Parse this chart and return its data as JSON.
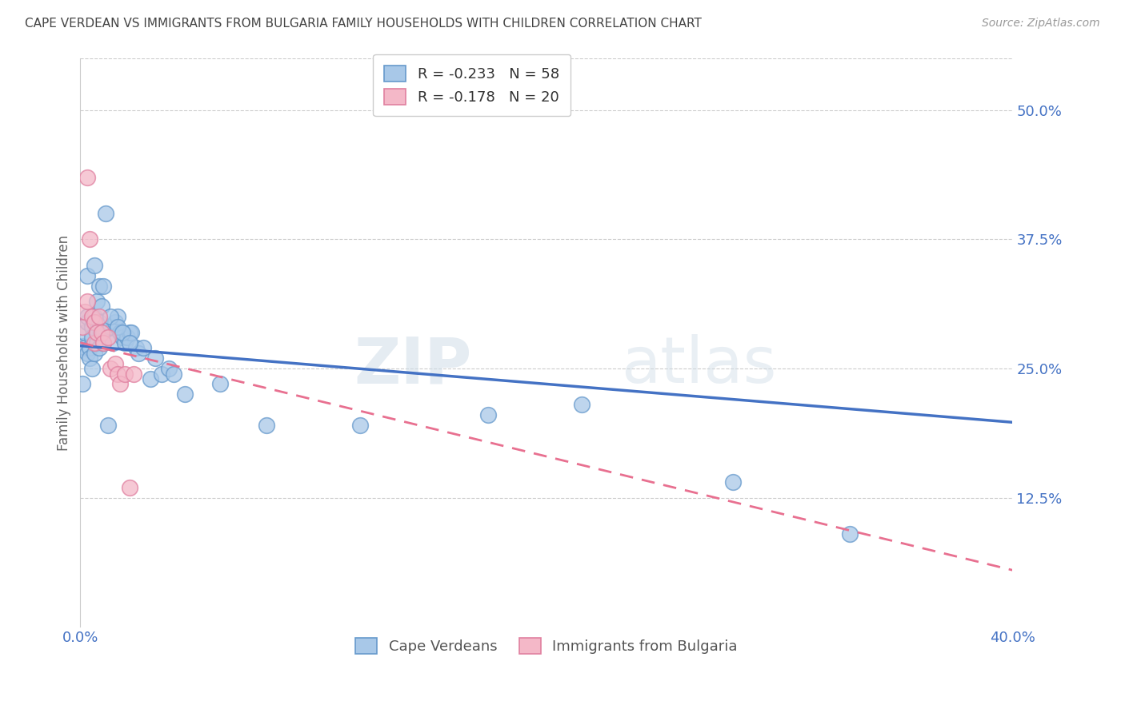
{
  "title": "CAPE VERDEAN VS IMMIGRANTS FROM BULGARIA FAMILY HOUSEHOLDS WITH CHILDREN CORRELATION CHART",
  "source": "Source: ZipAtlas.com",
  "ylabel": "Family Households with Children",
  "xlim": [
    0.0,
    0.4
  ],
  "ylim": [
    0.0,
    0.55
  ],
  "yticks": [
    0.125,
    0.25,
    0.375,
    0.5
  ],
  "ytick_labels": [
    "12.5%",
    "25.0%",
    "37.5%",
    "50.0%"
  ],
  "grid_color": "#cccccc",
  "watermark": "ZIPatlas",
  "series": [
    {
      "name": "Cape Verdeans",
      "R": -0.233,
      "N": 58,
      "color": "#a8c8e8",
      "edge_color": "#6699cc",
      "line_color": "#4472c4",
      "line_start_y": 0.272,
      "line_end_y": 0.198
    },
    {
      "name": "Immigrants from Bulgaria",
      "R": -0.178,
      "N": 20,
      "color": "#f4b8c8",
      "edge_color": "#e080a0",
      "line_color": "#e87090",
      "line_start_y": 0.275,
      "line_end_y": 0.055
    }
  ],
  "tick_color": "#4472c4",
  "title_color": "#444444",
  "background_color": "#ffffff",
  "cv_x": [
    0.001,
    0.001,
    0.002,
    0.002,
    0.003,
    0.003,
    0.003,
    0.004,
    0.004,
    0.005,
    0.005,
    0.005,
    0.006,
    0.006,
    0.007,
    0.007,
    0.008,
    0.008,
    0.009,
    0.009,
    0.01,
    0.01,
    0.011,
    0.012,
    0.013,
    0.014,
    0.015,
    0.016,
    0.017,
    0.018,
    0.019,
    0.02,
    0.021,
    0.022,
    0.024,
    0.025,
    0.027,
    0.03,
    0.032,
    0.035,
    0.038,
    0.04,
    0.003,
    0.006,
    0.008,
    0.01,
    0.013,
    0.016,
    0.018,
    0.021,
    0.045,
    0.06,
    0.08,
    0.12,
    0.175,
    0.215,
    0.28,
    0.33
  ],
  "cv_y": [
    0.272,
    0.235,
    0.285,
    0.27,
    0.295,
    0.265,
    0.3,
    0.27,
    0.26,
    0.29,
    0.28,
    0.25,
    0.3,
    0.265,
    0.315,
    0.275,
    0.295,
    0.27,
    0.31,
    0.28,
    0.285,
    0.275,
    0.4,
    0.195,
    0.29,
    0.275,
    0.295,
    0.3,
    0.285,
    0.28,
    0.275,
    0.28,
    0.285,
    0.285,
    0.27,
    0.265,
    0.27,
    0.24,
    0.26,
    0.245,
    0.25,
    0.245,
    0.34,
    0.35,
    0.33,
    0.33,
    0.3,
    0.29,
    0.285,
    0.275,
    0.225,
    0.235,
    0.195,
    0.195,
    0.205,
    0.215,
    0.14,
    0.09
  ],
  "bg_x": [
    0.001,
    0.002,
    0.003,
    0.003,
    0.004,
    0.005,
    0.006,
    0.006,
    0.007,
    0.008,
    0.009,
    0.01,
    0.012,
    0.013,
    0.015,
    0.016,
    0.017,
    0.019,
    0.021,
    0.023
  ],
  "bg_y": [
    0.29,
    0.305,
    0.315,
    0.435,
    0.375,
    0.3,
    0.295,
    0.275,
    0.285,
    0.3,
    0.285,
    0.275,
    0.28,
    0.25,
    0.255,
    0.245,
    0.235,
    0.245,
    0.135,
    0.245
  ]
}
